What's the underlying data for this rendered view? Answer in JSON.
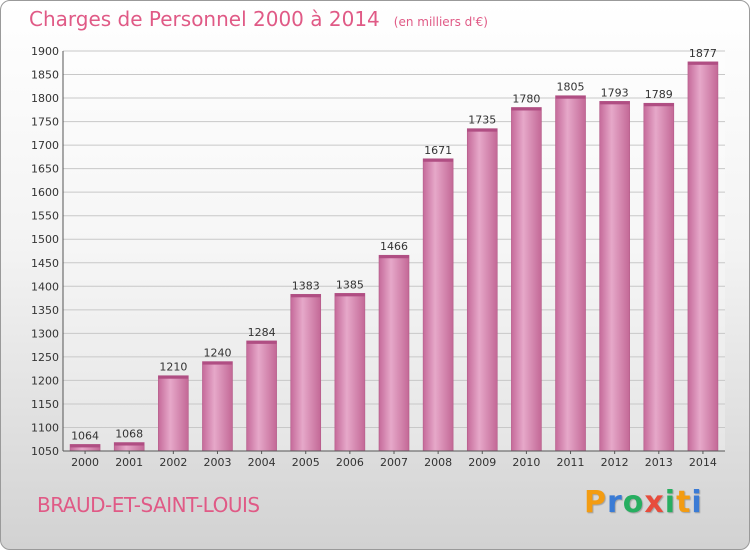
{
  "chart_data": {
    "type": "bar",
    "title": "Charges de Personnel 2000 à 2014",
    "subtitle": "(en milliers d'€)",
    "categories": [
      "2000",
      "2001",
      "2002",
      "2003",
      "2004",
      "2005",
      "2006",
      "2007",
      "2008",
      "2009",
      "2010",
      "2011",
      "2012",
      "2013",
      "2014"
    ],
    "values": [
      1064,
      1068,
      1210,
      1240,
      1284,
      1383,
      1385,
      1466,
      1671,
      1735,
      1780,
      1805,
      1793,
      1789,
      1877
    ],
    "ylim": [
      1050,
      1900
    ],
    "yticks": [
      1050,
      1100,
      1150,
      1200,
      1250,
      1300,
      1350,
      1400,
      1450,
      1500,
      1550,
      1600,
      1650,
      1700,
      1750,
      1800,
      1850,
      1900
    ],
    "grid": "horizontal",
    "bar_color": "#d17aa8"
  },
  "footer": {
    "town": "BRAUD-ET-SAINT-LOUIS",
    "logo_letters": [
      "P",
      "r",
      "o",
      "x",
      "i",
      "t",
      "i"
    ],
    "logo_colors": [
      "#f39c12",
      "#3a7bd5",
      "#27ae60",
      "#e74c3c",
      "#27ae60",
      "#f39c12",
      "#3a7bd5"
    ]
  }
}
